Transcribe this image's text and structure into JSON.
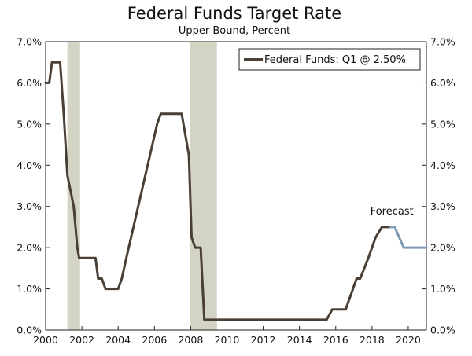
{
  "chart_data": {
    "type": "line",
    "title": "Federal Funds Target Rate",
    "subtitle": "Upper Bound, Percent",
    "xlabel": "",
    "ylabel": "",
    "xlim": [
      2000,
      2021
    ],
    "ylim": [
      0,
      7
    ],
    "x_ticks": [
      {
        "v": 2000,
        "label": "2000"
      },
      {
        "v": 2002,
        "label": "2002"
      },
      {
        "v": 2004,
        "label": "2004"
      },
      {
        "v": 2006,
        "label": "2006"
      },
      {
        "v": 2008,
        "label": "2008"
      },
      {
        "v": 2010,
        "label": "2010"
      },
      {
        "v": 2012,
        "label": "2012"
      },
      {
        "v": 2014,
        "label": "2014"
      },
      {
        "v": 2016,
        "label": "2016"
      },
      {
        "v": 2018,
        "label": "2018"
      },
      {
        "v": 2020,
        "label": "2020"
      }
    ],
    "y_ticks": [
      {
        "v": 0,
        "label": "0.0%"
      },
      {
        "v": 1,
        "label": "1.0%"
      },
      {
        "v": 2,
        "label": "2.0%"
      },
      {
        "v": 3,
        "label": "3.0%"
      },
      {
        "v": 4,
        "label": "4.0%"
      },
      {
        "v": 5,
        "label": "5.0%"
      },
      {
        "v": 6,
        "label": "6.0%"
      },
      {
        "v": 7,
        "label": "7.0%"
      }
    ],
    "grid": false,
    "legend": {
      "placement": "top-right",
      "entries": [
        "Federal Funds: Q1 @ 2.50%"
      ]
    },
    "recessions": [
      {
        "start": 2001.2,
        "end": 2001.9
      },
      {
        "start": 2007.95,
        "end": 2009.45
      }
    ],
    "annotations": [
      {
        "text": "Forecast",
        "x": 2019.1,
        "y": 2.8
      }
    ],
    "series": [
      {
        "name": "Federal Funds: Q1 @ 2.50%",
        "color": "#4a3f35",
        "points": [
          [
            2000.0,
            6.0
          ],
          [
            2000.2,
            6.0
          ],
          [
            2000.35,
            6.5
          ],
          [
            2000.8,
            6.5
          ],
          [
            2001.0,
            5.25
          ],
          [
            2001.2,
            3.75
          ],
          [
            2001.55,
            3.0
          ],
          [
            2001.75,
            2.0
          ],
          [
            2001.85,
            1.75
          ],
          [
            2002.75,
            1.75
          ],
          [
            2002.9,
            1.25
          ],
          [
            2003.1,
            1.25
          ],
          [
            2003.3,
            1.0
          ],
          [
            2004.0,
            1.0
          ],
          [
            2004.2,
            1.25
          ],
          [
            2004.45,
            1.75
          ],
          [
            2006.15,
            5.0
          ],
          [
            2006.35,
            5.25
          ],
          [
            2007.5,
            5.25
          ],
          [
            2007.7,
            4.75
          ],
          [
            2007.9,
            4.25
          ],
          [
            2008.05,
            2.25
          ],
          [
            2008.25,
            2.0
          ],
          [
            2008.55,
            2.0
          ],
          [
            2008.75,
            0.25
          ],
          [
            2015.5,
            0.25
          ],
          [
            2015.8,
            0.5
          ],
          [
            2016.55,
            0.5
          ],
          [
            2017.15,
            1.25
          ],
          [
            2017.35,
            1.25
          ],
          [
            2017.8,
            1.75
          ],
          [
            2018.2,
            2.25
          ],
          [
            2018.55,
            2.5
          ],
          [
            2019.0,
            2.5
          ]
        ]
      },
      {
        "name": "Forecast",
        "color": "#7f9bb5",
        "points": [
          [
            2019.0,
            2.5
          ],
          [
            2019.25,
            2.5
          ],
          [
            2019.75,
            2.0
          ],
          [
            2021.0,
            2.0
          ]
        ]
      }
    ]
  }
}
